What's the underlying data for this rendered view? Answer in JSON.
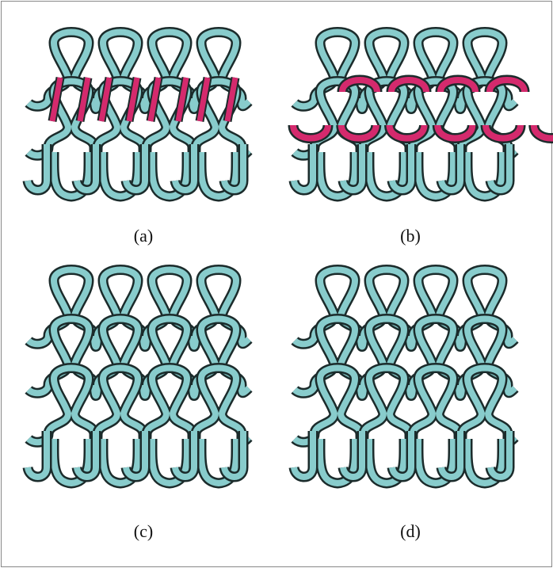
{
  "figure": {
    "colors": {
      "yarn": "#88cccc",
      "outline": "#1b2b2b",
      "highlight": "#d42a6d",
      "background": "#ffffff"
    },
    "panels": [
      {
        "label": "(a)",
        "courses": 3,
        "wales": 4,
        "highlight": "sinker-legs"
      },
      {
        "label": "(b)",
        "courses": 3,
        "wales": 4,
        "highlight": "loop-heads"
      },
      {
        "label": "(c)",
        "courses": 4,
        "wales": 4,
        "highlight": "none"
      },
      {
        "label": "(d)",
        "courses": 4,
        "wales": 4,
        "highlight": "none"
      }
    ]
  }
}
